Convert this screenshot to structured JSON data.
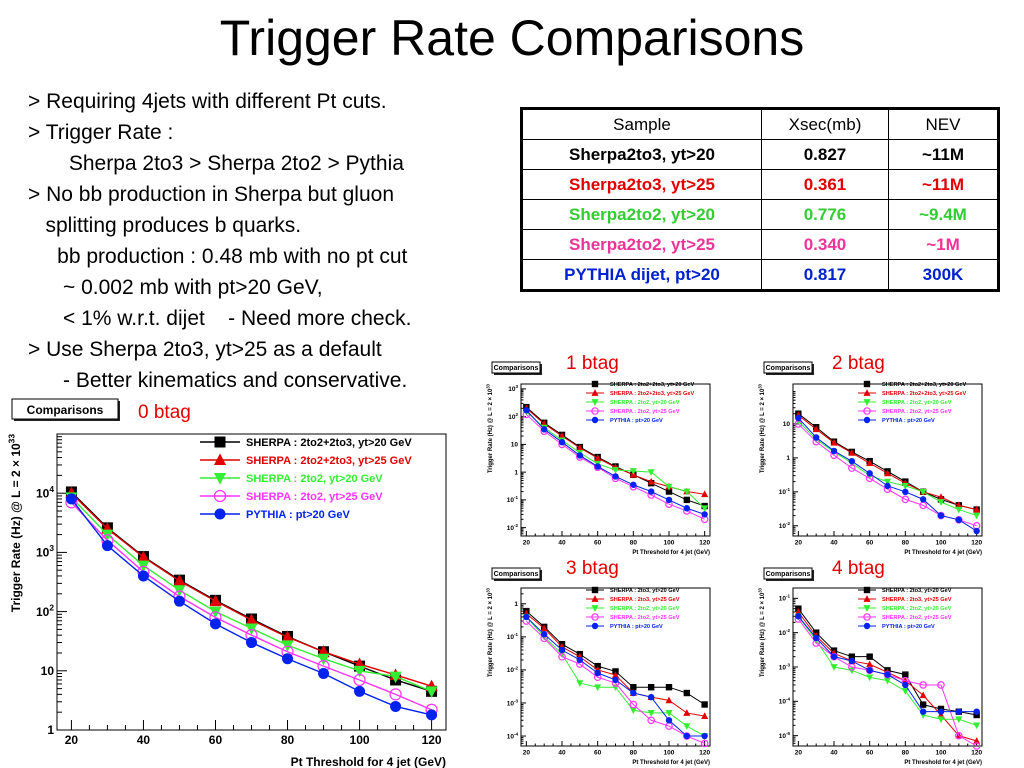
{
  "slide": {
    "title": "Trigger Rate Comparisons",
    "bullets": [
      "> Requiring 4jets with different Pt cuts.",
      "> Trigger Rate :",
      "       Sherpa 2to3 > Sherpa 2to2 > Pythia",
      "> No bb production in Sherpa but gluon",
      "   splitting produces b quarks.",
      "     bb production : 0.48 mb with no pt cut",
      "      ~ 0.002 mb with pt>20 GeV,",
      "      < 1% w.r.t. dijet    - Need more check.",
      "> Use Sherpa 2to3, yt>25 as a default",
      "      - Better kinematics and conservative."
    ]
  },
  "table": {
    "headers": [
      "Sample",
      "Xsec(mb)",
      "NEV"
    ],
    "rows": [
      {
        "cells": [
          "Sherpa2to3, yt>20",
          "0.827",
          "~11M"
        ],
        "color": "#000000"
      },
      {
        "cells": [
          "Sherpa2to3, yt>25",
          "0.361",
          "~11M"
        ],
        "color": "#e00000"
      },
      {
        "cells": [
          "Sherpa2to2, yt>20",
          "0.776",
          "~9.4M"
        ],
        "color": "#33cc33"
      },
      {
        "cells": [
          "Sherpa2to2, yt>25",
          "0.340",
          "~1M"
        ],
        "color": "#ee3399"
      },
      {
        "cells": [
          "PYTHIA dijet, pt>20",
          "0.817",
          "300K"
        ],
        "color": "#0022cc"
      }
    ]
  },
  "chart_data": [
    {
      "type": "line",
      "label": "0 btag",
      "box_label": "Comparisons",
      "xlabel": "Pt Threshold for 4 jet (GeV)",
      "ylabel": "Trigger Rate (Hz) @ L = 2 × 10^33",
      "ylog": true,
      "xlim": [
        16,
        124
      ],
      "ylim": [
        1,
        100000
      ],
      "xticks": [
        "20",
        "40",
        "60",
        "80",
        "100",
        "120"
      ],
      "yticks": [
        "1",
        "10",
        "10^2",
        "10^3",
        "10^4"
      ],
      "x": [
        20,
        30,
        40,
        50,
        60,
        70,
        80,
        90,
        100,
        110,
        120
      ],
      "series": [
        {
          "name": "SHERPA : 2to2+2to3, yt>20 GeV",
          "color": "#000000",
          "marker": "square",
          "values": [
            10500,
            2600,
            850,
            340,
            155,
            75,
            38,
            21,
            12,
            7,
            4.5
          ]
        },
        {
          "name": "SHERPA : 2to2+2to3, yt>25 GeV",
          "color": "#e00000",
          "marker": "triangle-up",
          "values": [
            10000,
            2500,
            830,
            330,
            150,
            72,
            37,
            21,
            13,
            8.5,
            5.5
          ]
        },
        {
          "name": "SHERPA : 2to2, yt>20 GeV",
          "color": "#33ee33",
          "marker": "triangle-down",
          "values": [
            8500,
            2000,
            600,
            230,
            100,
            52,
            27,
            16,
            10,
            8,
            4.5
          ]
        },
        {
          "name": "SHERPA : 2to2, yt>25 GeV",
          "color": "#ff33ff",
          "marker": "circle-open",
          "values": [
            7000,
            1600,
            470,
            180,
            80,
            40,
            21,
            12,
            7,
            4,
            2.2
          ]
        },
        {
          "name": "PYTHIA : pt>20 GeV",
          "color": "#0022ee",
          "marker": "circle",
          "values": [
            8000,
            1300,
            400,
            150,
            62,
            30,
            16,
            9,
            4.5,
            2.5,
            1.8
          ]
        }
      ]
    },
    {
      "type": "line",
      "label": "1 btag",
      "box_label": "Comparisons",
      "xlabel": "Pt Threshold for 4 jet (GeV)",
      "ylabel": "Trigger Rate (Hz) @ L = 2 × 10^33",
      "ylog": true,
      "xlim": [
        17,
        123
      ],
      "ylim": [
        0.005,
        1500
      ],
      "xticks": [
        "20",
        "40",
        "60",
        "80",
        "100",
        "120"
      ],
      "yticks": [
        "10^-2",
        "10^-1",
        "1",
        "10",
        "10^2",
        "10^3"
      ],
      "x": [
        20,
        30,
        40,
        50,
        60,
        70,
        80,
        90,
        100,
        110,
        120
      ],
      "series": [
        {
          "name": "SHERPA : 2to2+2to3, yt>20 GeV",
          "color": "#000000",
          "marker": "square",
          "values": [
            220,
            60,
            22,
            8,
            3.5,
            1.6,
            0.8,
            0.4,
            0.2,
            0.1,
            0.06
          ]
        },
        {
          "name": "SHERPA : 2to2+2to3, yt>25 GeV",
          "color": "#e00000",
          "marker": "triangle-up",
          "values": [
            200,
            55,
            20,
            7.5,
            3.2,
            1.5,
            0.8,
            0.45,
            0.3,
            0.2,
            0.16
          ]
        },
        {
          "name": "SHERPA : 2to2, yt>20 GeV",
          "color": "#33ee33",
          "marker": "triangle-down",
          "values": [
            150,
            40,
            14,
            5,
            2,
            1.2,
            1.1,
            1.0,
            0.3,
            0.2,
            0.05
          ]
        },
        {
          "name": "SHERPA : 2to2, yt>25 GeV",
          "color": "#ff33ff",
          "marker": "circle-open",
          "values": [
            120,
            30,
            10,
            3.5,
            1.5,
            0.6,
            0.3,
            0.15,
            0.07,
            0.04,
            0.02
          ]
        },
        {
          "name": "PYTHIA : pt>20 GeV",
          "color": "#0022ee",
          "marker": "circle",
          "values": [
            170,
            35,
            12,
            4,
            1.6,
            0.7,
            0.35,
            0.2,
            0.1,
            0.05,
            0.03
          ]
        }
      ]
    },
    {
      "type": "line",
      "label": "2 btag",
      "box_label": "Comparisons",
      "xlabel": "Pt Threshold for 4 jet (GeV)",
      "ylabel": "Trigger Rate (Hz) @ L = 2 × 10^33",
      "ylog": true,
      "xlim": [
        17,
        123
      ],
      "ylim": [
        0.005,
        150
      ],
      "xticks": [
        "20",
        "40",
        "60",
        "80",
        "100",
        "120"
      ],
      "yticks": [
        "10^-2",
        "10^-1",
        "1",
        "10"
      ],
      "x": [
        20,
        30,
        40,
        50,
        60,
        70,
        80,
        90,
        100,
        110,
        120
      ],
      "series": [
        {
          "name": "SHERPA : 2to2+2to3, yt>20 GeV",
          "color": "#000000",
          "marker": "square",
          "values": [
            20,
            8,
            3,
            1.5,
            0.8,
            0.4,
            0.2,
            0.1,
            0.06,
            0.04,
            0.03
          ]
        },
        {
          "name": "SHERPA : 2to2+2to3, yt>25 GeV",
          "color": "#e00000",
          "marker": "triangle-up",
          "values": [
            18,
            7,
            2.8,
            1.4,
            0.7,
            0.35,
            0.18,
            0.1,
            0.07,
            0.04,
            0.03
          ]
        },
        {
          "name": "SHERPA : 2to2, yt>20 GeV",
          "color": "#33ee33",
          "marker": "triangle-down",
          "values": [
            12,
            3.5,
            1.5,
            0.7,
            0.3,
            0.2,
            0.15,
            0.1,
            0.05,
            0.03,
            0.02
          ]
        },
        {
          "name": "SHERPA : 2to2, yt>25 GeV",
          "color": "#ff33ff",
          "marker": "circle-open",
          "values": [
            10,
            3,
            1.2,
            0.5,
            0.25,
            0.12,
            0.06,
            0.04,
            0.02,
            0.015,
            0.01
          ]
        },
        {
          "name": "PYTHIA : pt>20 GeV",
          "color": "#0022ee",
          "marker": "circle",
          "values": [
            15,
            4,
            1.6,
            0.8,
            0.35,
            0.15,
            0.1,
            0.06,
            0.02,
            0.015,
            0.007
          ]
        }
      ]
    },
    {
      "type": "line",
      "label": "3 btag",
      "box_label": "Comparisons",
      "xlabel": "Pt Threshold for 4 jet (GeV)",
      "ylabel": "Trigger Rate (Hz) @ L = 2 × 10^33",
      "ylog": true,
      "xlim": [
        17,
        123
      ],
      "ylim": [
        5e-05,
        3
      ],
      "xticks": [
        "20",
        "40",
        "60",
        "80",
        "100",
        "120"
      ],
      "yticks": [
        "10^-4",
        "10^-3",
        "10^-2",
        "10^-1",
        "1"
      ],
      "x": [
        20,
        30,
        40,
        50,
        60,
        70,
        80,
        90,
        100,
        110,
        120
      ],
      "series": [
        {
          "name": "SHERPA : 2to3, yt>20 GeV",
          "color": "#000000",
          "marker": "square",
          "values": [
            0.6,
            0.2,
            0.06,
            0.03,
            0.013,
            0.009,
            0.003,
            0.003,
            0.003,
            0.002,
            0.0009
          ]
        },
        {
          "name": "SHERPA : 2to3, yt>25 GeV",
          "color": "#e00000",
          "marker": "triangle-up",
          "values": [
            0.5,
            0.18,
            0.05,
            0.025,
            0.01,
            0.007,
            0.002,
            0.0015,
            0.0012,
            0.0005,
            0.0004
          ]
        },
        {
          "name": "SHERPA : 2to2, yt>20 GeV",
          "color": "#33ee33",
          "marker": "triangle-down",
          "values": [
            0.4,
            0.1,
            0.03,
            0.004,
            0.003,
            0.003,
            0.0006,
            0.0005,
            0.0005,
            0.0002,
            0.0001
          ]
        },
        {
          "name": "SHERPA : 2to2, yt>25 GeV",
          "color": "#ff33ff",
          "marker": "circle-open",
          "values": [
            0.3,
            0.09,
            0.025,
            0.015,
            0.006,
            0.004,
            0.0009,
            0.0003,
            0.0002,
            0.0001,
            6e-05
          ]
        },
        {
          "name": "PYTHIA : pt>20 GeV",
          "color": "#0022ee",
          "marker": "circle",
          "values": [
            0.4,
            0.12,
            0.04,
            0.02,
            0.008,
            0.005,
            0.002,
            0.0015,
            0.0003,
            0.0001,
            0.0001
          ]
        }
      ]
    },
    {
      "type": "line",
      "label": "4 btag",
      "box_label": "Comparisons",
      "xlabel": "Pt Threshold for 4 jet (GeV)",
      "ylabel": "Trigger Rate (Hz) @ L = 2 × 10^33",
      "ylog": true,
      "xlim": [
        17,
        123
      ],
      "ylim": [
        5e-06,
        0.2
      ],
      "xticks": [
        "20",
        "40",
        "60",
        "80",
        "100",
        "120"
      ],
      "yticks": [
        "10^-5",
        "10^-4",
        "10^-3",
        "10^-2",
        "10^-1"
      ],
      "x": [
        20,
        30,
        40,
        50,
        60,
        70,
        80,
        90,
        100,
        110,
        120
      ],
      "series": [
        {
          "name": "SHERPA : 2to3, yt>20 GeV",
          "color": "#000000",
          "marker": "square",
          "values": [
            0.05,
            0.01,
            0.003,
            0.002,
            0.002,
            0.0008,
            0.0006,
            8e-05,
            6e-05,
            5e-05,
            4e-05
          ]
        },
        {
          "name": "SHERPA : 2to3, yt>25 GeV",
          "color": "#e00000",
          "marker": "triangle-up",
          "values": [
            0.04,
            0.008,
            0.0025,
            0.0015,
            0.0012,
            0.0007,
            0.0004,
            0.00015,
            4e-05,
            1e-05,
            7e-06
          ]
        },
        {
          "name": "SHERPA : 2to2, yt>20 GeV",
          "color": "#33ee33",
          "marker": "triangle-down",
          "values": [
            0.03,
            0.006,
            0.001,
            0.0008,
            0.0005,
            0.0004,
            0.0002,
            4e-05,
            3e-05,
            3e-05,
            2e-05
          ]
        },
        {
          "name": "SHERPA : 2to2, yt>25 GeV",
          "color": "#ff33ff",
          "marker": "circle-open",
          "values": [
            0.025,
            0.005,
            0.002,
            0.001,
            0.0008,
            0.0006,
            0.0004,
            0.0003,
            0.0003,
            1e-05,
            5e-06
          ]
        },
        {
          "name": "PYTHIA : pt>20 GeV",
          "color": "#0022ee",
          "marker": "circle",
          "values": [
            0.03,
            0.007,
            0.002,
            0.0015,
            0.0008,
            0.0006,
            0.0003,
            5e-05,
            5e-05,
            5e-05,
            5e-05
          ]
        }
      ]
    }
  ]
}
